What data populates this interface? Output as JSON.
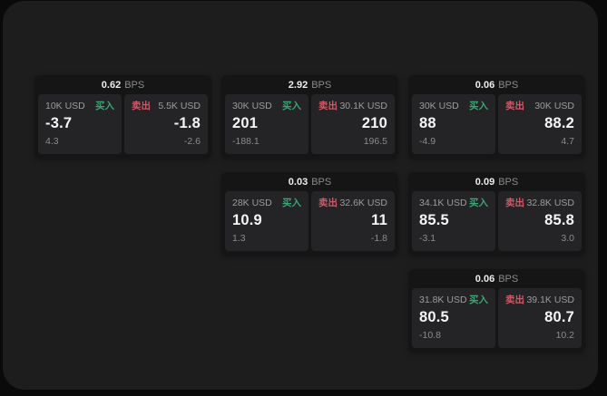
{
  "labels": {
    "buy": "买入",
    "sell": "卖出",
    "bps_unit": "BPS"
  },
  "colors": {
    "buy_green": "#3fa475",
    "sell_red": "#cd5a69",
    "window_bg": "#1d1d1e",
    "card_bg": "#151516",
    "panel_bg": "#242426"
  },
  "cards": [
    {
      "row": 0,
      "col": 0,
      "bps": "0.62",
      "buy": {
        "size": "10K USD",
        "price": "-3.7",
        "delta": "4.3"
      },
      "sell": {
        "size": "5.5K USD",
        "price": "-1.8",
        "delta": "-2.6"
      }
    },
    {
      "row": 0,
      "col": 1,
      "bps": "2.92",
      "buy": {
        "size": "30K USD",
        "price": "201",
        "delta": "-188.1"
      },
      "sell": {
        "size": "30.1K USD",
        "price": "210",
        "delta": "196.5"
      }
    },
    {
      "row": 0,
      "col": 2,
      "bps": "0.06",
      "buy": {
        "size": "30K USD",
        "price": "88",
        "delta": "-4.9"
      },
      "sell": {
        "size": "30K USD",
        "price": "88.2",
        "delta": "4.7"
      }
    },
    {
      "row": 1,
      "col": 1,
      "bps": "0.03",
      "buy": {
        "size": "28K USD",
        "price": "10.9",
        "delta": "1.3"
      },
      "sell": {
        "size": "32.6K USD",
        "price": "11",
        "delta": "-1.8"
      }
    },
    {
      "row": 1,
      "col": 2,
      "bps": "0.09",
      "buy": {
        "size": "34.1K USD",
        "price": "85.5",
        "delta": "-3.1"
      },
      "sell": {
        "size": "32.8K USD",
        "price": "85.8",
        "delta": "3.0"
      }
    },
    {
      "row": 2,
      "col": 2,
      "bps": "0.06",
      "buy": {
        "size": "31.8K USD",
        "price": "80.5",
        "delta": "-10.8"
      },
      "sell": {
        "size": "39.1K USD",
        "price": "80.7",
        "delta": "10.2"
      }
    }
  ]
}
